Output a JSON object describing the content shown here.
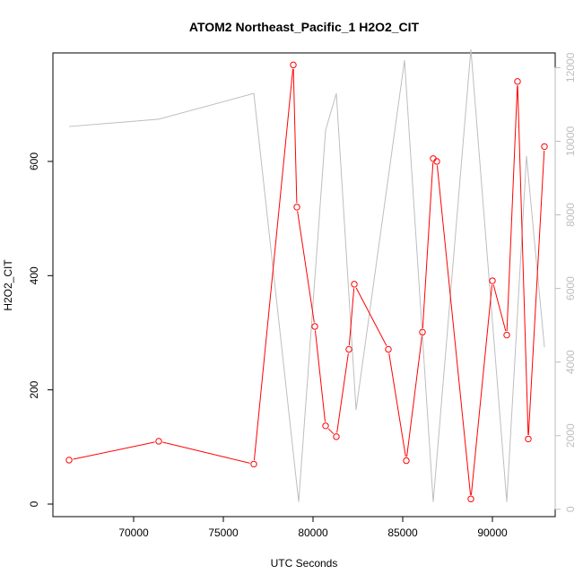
{
  "chart_data": {
    "type": "line",
    "title": "ATOM2 Northeast_Pacific_1 H2O2_CIT",
    "xlabel": "UTC Seconds",
    "ylabel": "H2O2_CIT",
    "xlim": [
      65500,
      93500
    ],
    "ylim": [
      -22,
      790
    ],
    "y2lim": [
      -200,
      12400
    ],
    "x_ticks": [
      70000,
      75000,
      80000,
      85000,
      90000
    ],
    "x_tick_labels": [
      "70000",
      "75000",
      "80000",
      "85000",
      "90000"
    ],
    "y_ticks": [
      0,
      200,
      400,
      600
    ],
    "y_tick_labels": [
      "0",
      "200",
      "400",
      "600"
    ],
    "y2_ticks": [
      0,
      2000,
      4000,
      6000,
      8000,
      10000,
      12000
    ],
    "y2_tick_labels": [
      "0",
      "2000",
      "4000",
      "6000",
      "8000",
      "10000",
      "12000"
    ],
    "grid": false,
    "series": [
      {
        "axis": "left",
        "color": "#ff0000",
        "marker": "open-circle",
        "x": [
          66400,
          71400,
          76700,
          78900,
          79100,
          80100,
          80700,
          81300,
          82000,
          82300,
          84200,
          85200,
          86100,
          86700,
          86900,
          88800,
          90000,
          90800,
          91400,
          92000,
          92900
        ],
        "y": [
          77,
          110,
          70,
          769,
          520,
          311,
          137,
          118,
          271,
          385,
          271,
          76,
          301,
          605,
          600,
          9,
          391,
          296,
          740,
          114,
          626
        ]
      },
      {
        "axis": "right",
        "color": "#bebebe",
        "marker": "none",
        "x": [
          66400,
          71400,
          76700,
          79200,
          80700,
          81300,
          82400,
          85100,
          86700,
          88800,
          90800,
          91900,
          92900
        ],
        "y": [
          10400,
          10600,
          11300,
          200,
          10300,
          11300,
          2700,
          12200,
          200,
          12500,
          200,
          9600,
          4400
        ]
      }
    ]
  }
}
